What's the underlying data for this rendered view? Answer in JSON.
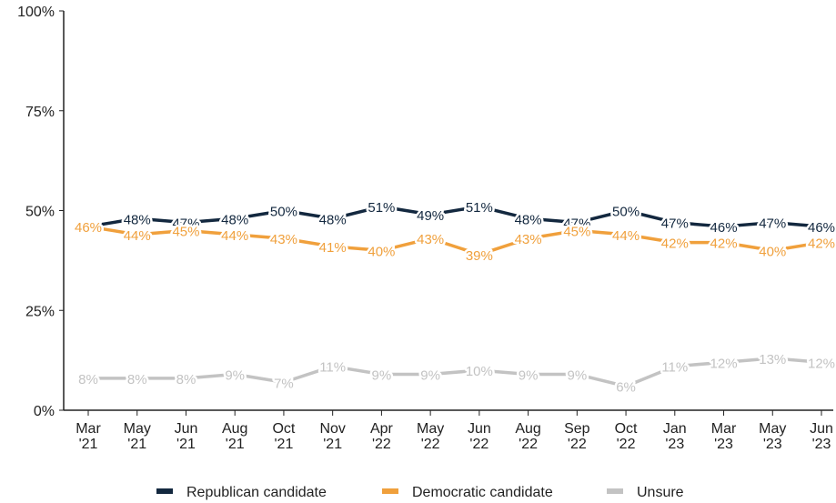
{
  "chart_data": {
    "type": "line",
    "categories": [
      "Mar '21",
      "May '21",
      "Jun '21",
      "Aug '21",
      "Oct '21",
      "Nov '21",
      "Apr '22",
      "May '22",
      "Jun '22",
      "Aug '22",
      "Sep '22",
      "Oct '22",
      "Jan '23",
      "Mar '23",
      "May '23",
      "Jun '23"
    ],
    "series": [
      {
        "name": "Republican candidate",
        "color": "#13283f",
        "values": [
          46,
          48,
          47,
          48,
          50,
          48,
          51,
          49,
          51,
          48,
          47,
          50,
          47,
          46,
          47,
          46
        ],
        "value_labels": [
          "46%",
          "48%",
          "47%",
          "48%",
          "50%",
          "48%",
          "51%",
          "49%",
          "51%",
          "48%",
          "47%",
          "50%",
          "47%",
          "46%",
          "47%",
          "46%"
        ]
      },
      {
        "name": "Democratic candidate",
        "color": "#f0a03c",
        "values": [
          46,
          44,
          45,
          44,
          43,
          41,
          40,
          43,
          39,
          43,
          45,
          44,
          42,
          42,
          40,
          42
        ],
        "value_labels": [
          "46%",
          "44%",
          "45%",
          "44%",
          "43%",
          "41%",
          "40%",
          "43%",
          "39%",
          "43%",
          "45%",
          "44%",
          "42%",
          "42%",
          "40%",
          "42%"
        ]
      },
      {
        "name": "Unsure",
        "color": "#c3c3c3",
        "values": [
          8,
          8,
          8,
          9,
          7,
          11,
          9,
          9,
          10,
          9,
          9,
          6,
          11,
          12,
          13,
          12
        ],
        "value_labels": [
          "8%",
          "8%",
          "8%",
          "9%",
          "7%",
          "11%",
          "9%",
          "9%",
          "10%",
          "9%",
          "9%",
          "6%",
          "11%",
          "12%",
          "13%",
          "12%"
        ]
      }
    ],
    "ylim": [
      0,
      100
    ],
    "yticks": [
      {
        "value": 0,
        "label": "0%"
      },
      {
        "value": 25,
        "label": "25%"
      },
      {
        "value": 50,
        "label": "50%"
      },
      {
        "value": 75,
        "label": "75%"
      },
      {
        "value": 100,
        "label": "100%"
      }
    ],
    "grid": false,
    "legend": "bottom"
  }
}
